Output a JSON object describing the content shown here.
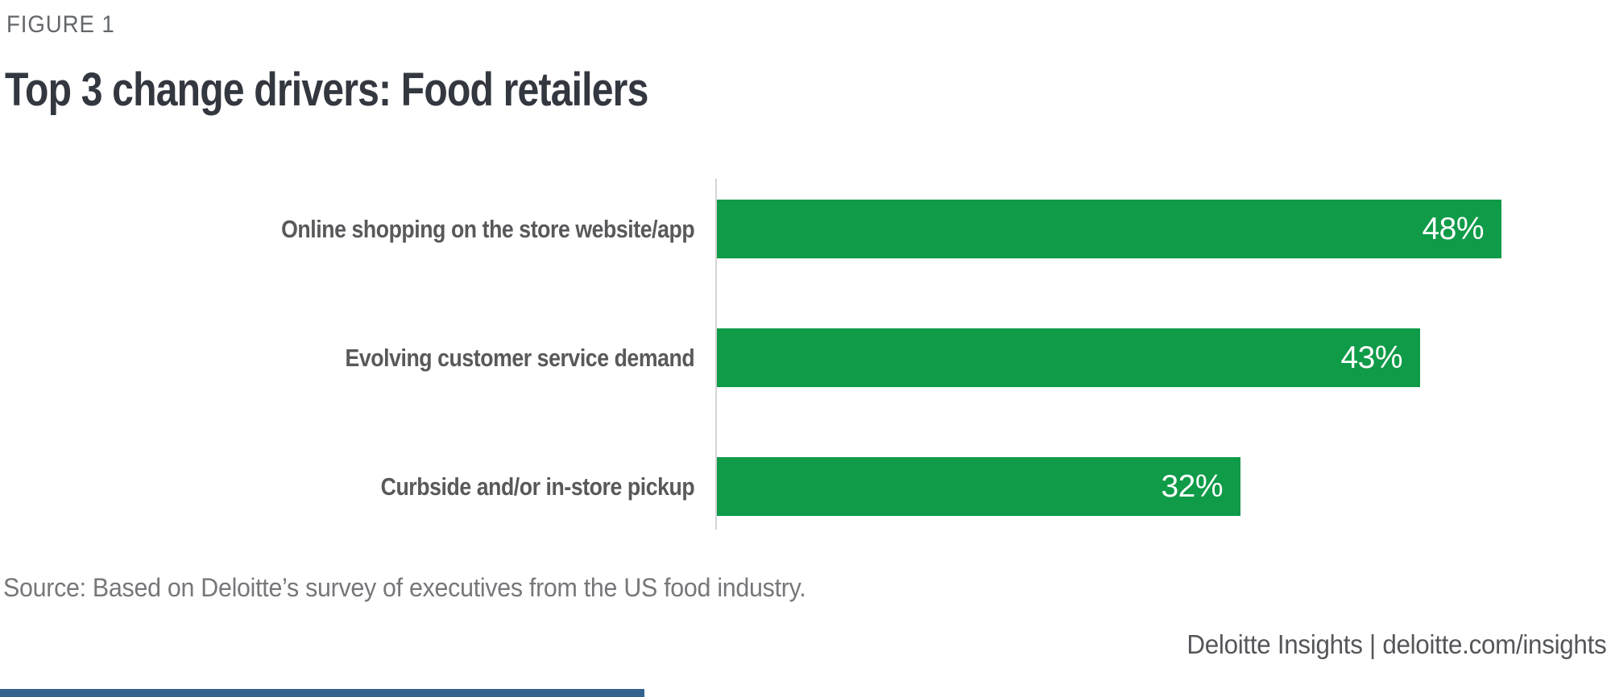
{
  "figure_label": "FIGURE 1",
  "title": "Top 3 change drivers: Food retailers",
  "source": "Source: Based on Deloitte’s survey of executives from the US food industry.",
  "footer": {
    "text": "Deloitte Insights | deloitte.com/insights"
  },
  "colors": {
    "bar": "#0F9B48",
    "value_text": "#FFFFFF",
    "title": "#33373F",
    "figure_label": "#63666A",
    "label": "#58595B",
    "source": "#76777A",
    "footer": "#54565A",
    "axis": "#D4D4D4",
    "accent_bottom": "#33638E"
  },
  "chart_data": {
    "type": "bar",
    "orientation": "horizontal",
    "title": "Top 3 change drivers: Food retailers",
    "categories": [
      "Online shopping on the store website/app",
      "Evolving customer service demand",
      "Curbside and/or in-store pickup"
    ],
    "values": [
      48,
      43,
      32
    ],
    "value_labels": [
      "48%",
      "43%",
      "32%"
    ],
    "unit": "%",
    "xlabel": "",
    "ylabel": "",
    "xlim": [
      0,
      100
    ],
    "grid": false,
    "legend": false,
    "value_label_position": "inside-end",
    "bar_color": "#0F9B48"
  }
}
